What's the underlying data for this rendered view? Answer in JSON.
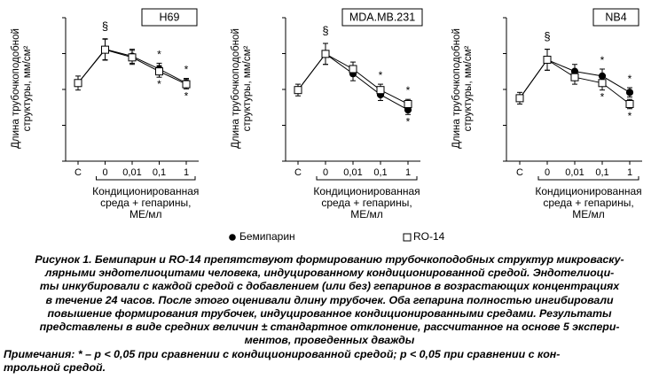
{
  "legend": {
    "bemiparin": "Бемипарин",
    "ro14": "RO-14"
  },
  "chart_data": [
    {
      "type": "line",
      "panel_label": "H69",
      "ylabel_lines": [
        "Длина трубочкоподобной",
        "структуры, мм/см²"
      ],
      "categories": [
        "C",
        "0",
        "0,01",
        "0,1",
        "1"
      ],
      "xlabel_lines": [
        "Кондиционированная",
        "среда + гепарины,",
        "МЕ/мл"
      ],
      "ylim": [
        0,
        600
      ],
      "control": {
        "category": "C",
        "value": 335,
        "err": 30
      },
      "series": [
        {
          "name": "Бемипарин",
          "marker": "filled-circle",
          "values": [
            null,
            480,
            450,
            395,
            335
          ],
          "err": [
            null,
            45,
            30,
            25,
            20
          ]
        },
        {
          "name": "RO-14",
          "marker": "open-square",
          "values": [
            null,
            478,
            445,
            385,
            330
          ],
          "err": [
            null,
            45,
            30,
            25,
            20
          ]
        }
      ],
      "annotations": [
        {
          "text": "§",
          "category": "0",
          "series": 0,
          "position": "above"
        },
        {
          "text": "*",
          "category": "0,1",
          "series": 0,
          "position": "above"
        },
        {
          "text": "*",
          "category": "0,1",
          "series": 1,
          "position": "below"
        },
        {
          "text": "*",
          "category": "1",
          "series": 0,
          "position": "above"
        },
        {
          "text": "*",
          "category": "1",
          "series": 1,
          "position": "below"
        }
      ]
    },
    {
      "type": "line",
      "panel_label": "MDA.MB.231",
      "ylabel_lines": [
        "Длина трубочкоподобной",
        "структуры, мм/см²"
      ],
      "categories": [
        "C",
        "0",
        "0,01",
        "0,1",
        "1"
      ],
      "xlabel_lines": [
        "Кондиционированная",
        "среда + гепарины,",
        "МЕ/мл"
      ],
      "ylim": [
        0,
        600
      ],
      "control": {
        "category": "C",
        "value": 305,
        "err": 25
      },
      "series": [
        {
          "name": "Бемипарин",
          "marker": "filled-circle",
          "values": [
            null,
            460,
            375,
            285,
            220
          ],
          "err": [
            null,
            45,
            30,
            25,
            20
          ]
        },
        {
          "name": "RO-14",
          "marker": "open-square",
          "values": [
            null,
            460,
            395,
            305,
            245
          ],
          "err": [
            null,
            45,
            30,
            25,
            20
          ]
        }
      ],
      "annotations": [
        {
          "text": "§",
          "category": "0",
          "series": 0,
          "position": "above"
        },
        {
          "text": "*",
          "category": "0,1",
          "series": 1,
          "position": "above"
        },
        {
          "text": "*",
          "category": "1",
          "series": 1,
          "position": "above"
        },
        {
          "text": "*",
          "category": "1",
          "series": 0,
          "position": "below"
        }
      ]
    },
    {
      "type": "line",
      "panel_label": "NB4",
      "ylabel_lines": [
        "Длина трубочкоподобной",
        "структуры, мм/см²"
      ],
      "categories": [
        "C",
        "0",
        "0,01",
        "0,1",
        "1"
      ],
      "xlabel_lines": [
        "Кондиционированная",
        "среда + гепарины,",
        "МЕ/мл"
      ],
      "ylim": [
        0,
        600
      ],
      "control": {
        "category": "C",
        "value": 270,
        "err": 25
      },
      "series": [
        {
          "name": "Бемипарин",
          "marker": "filled-circle",
          "values": [
            null,
            435,
            385,
            365,
            295
          ],
          "err": [
            null,
            45,
            30,
            30,
            20
          ]
        },
        {
          "name": "RO-14",
          "marker": "open-square",
          "values": [
            null,
            435,
            360,
            335,
            245
          ],
          "err": [
            null,
            45,
            30,
            30,
            20
          ]
        }
      ],
      "annotations": [
        {
          "text": "§",
          "category": "0",
          "series": 0,
          "position": "above"
        },
        {
          "text": "*",
          "category": "0,1",
          "series": 0,
          "position": "above"
        },
        {
          "text": "*",
          "category": "0,1",
          "series": 1,
          "position": "below"
        },
        {
          "text": "*",
          "category": "1",
          "series": 0,
          "position": "above"
        },
        {
          "text": "*",
          "category": "1",
          "series": 1,
          "position": "below"
        }
      ]
    }
  ],
  "caption": {
    "title": "Рисунок 1. Бемипарин и RO-14 препятствуют формированию трубочкоподобных структур микроваску-",
    "lines": [
      "лярными эндотелиоцитами человека, индуцированному кондиционированной средой. Эндотелиоци-",
      "ты инкубировали с каждой средой с добавлением (или без) гепаринов в возрастающих концентрациях",
      "в течение 24 часов. После этого оценивали длину трубочек. Оба гепарина полностью ингибировали",
      "повышение формирования трубочек, индуцированное кондиционированными средами. Результаты",
      "представлены в виде средних величин ± стандартное отклонение, рассчитанное на основе 5 экспери-",
      "ментов, проведенных дважды"
    ]
  },
  "notes": {
    "line1": "Примечания: * – p < 0,05 при сравнении с кондиционированной средой; p < 0,05 при сравнении с кон-",
    "line2": "трольной средой."
  }
}
